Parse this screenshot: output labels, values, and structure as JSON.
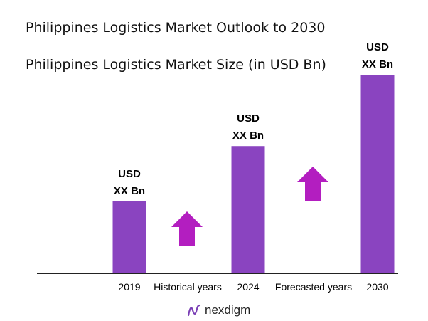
{
  "titles": {
    "line1": "Philippines Logistics Market Outlook to 2030",
    "line2": "Philippines Logistics Market Size (in USD Bn)"
  },
  "chart_data": {
    "type": "bar",
    "categories": [
      "2019",
      "2024",
      "2030"
    ],
    "values": [
      1.0,
      1.77,
      2.76
    ],
    "value_labels": [
      [
        "USD",
        "XX Bn"
      ],
      [
        "USD",
        "XX Bn"
      ],
      [
        "USD",
        "XX Bn"
      ]
    ],
    "period_labels": [
      "Historical years",
      "Forecasted years"
    ],
    "grid": false,
    "bar_color": "#8a44c0",
    "arrow_color": "#b31ec0"
  },
  "brand": {
    "name": "nexdigm",
    "color": "#7a3fb5"
  }
}
